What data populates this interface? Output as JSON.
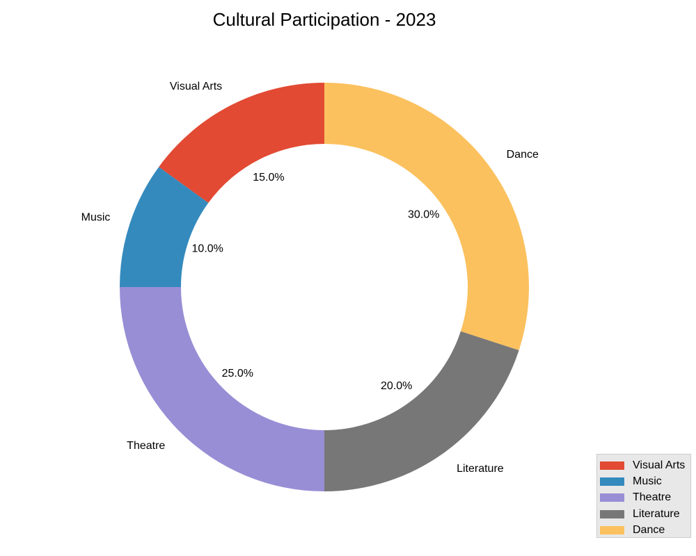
{
  "chart_data": {
    "type": "pie",
    "variant": "donut",
    "title": "Cultural Participation - 2023",
    "categories": [
      "Visual Arts",
      "Music",
      "Theatre",
      "Literature",
      "Dance"
    ],
    "values": [
      15.0,
      10.0,
      25.0,
      20.0,
      30.0
    ],
    "value_labels": [
      "15.0%",
      "10.0%",
      "25.0%",
      "20.0%",
      "30.0%"
    ],
    "colors": [
      "#E24A33",
      "#348ABD",
      "#988ED5",
      "#777777",
      "#FBC15E"
    ],
    "start_angle_deg": 90,
    "direction": "counterclockwise",
    "legend_position": "lower-right"
  }
}
